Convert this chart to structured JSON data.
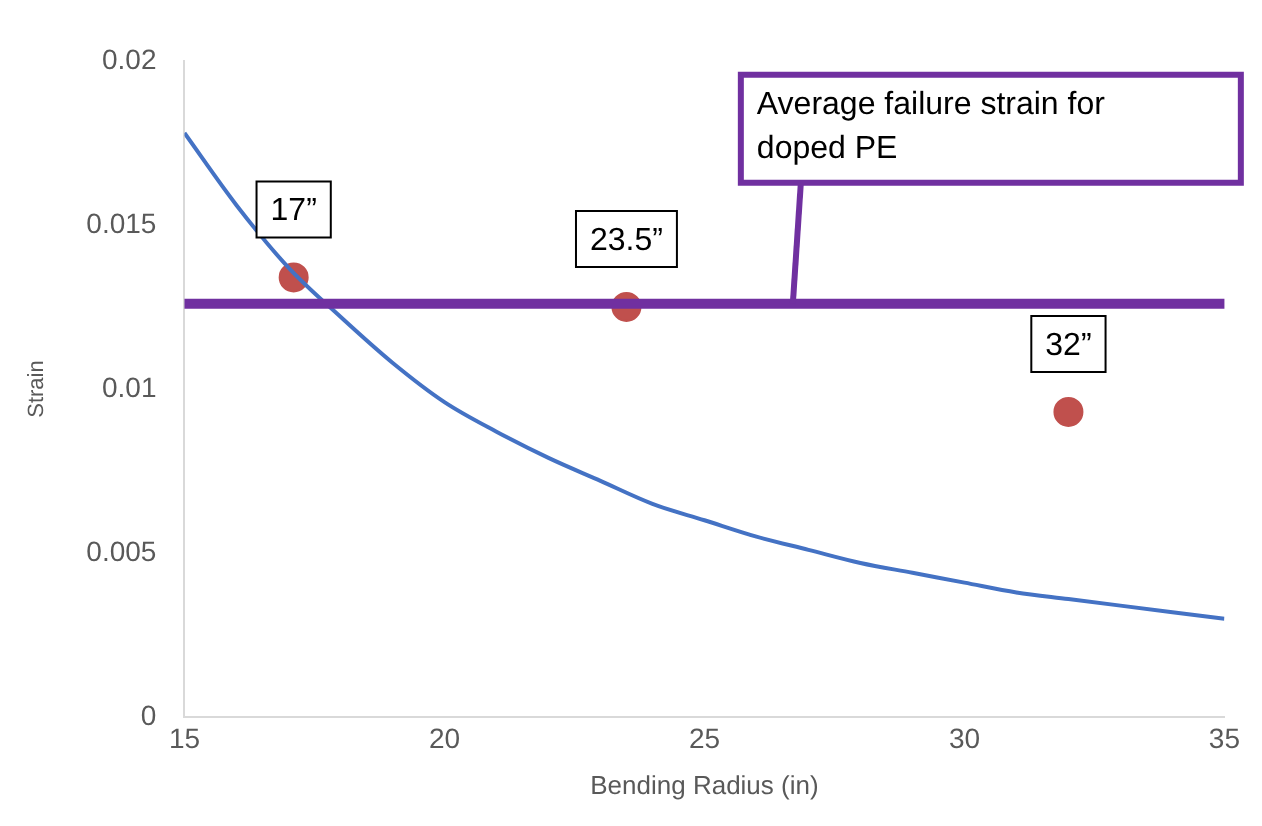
{
  "chart_data": {
    "type": "scatter",
    "xlabel": "Bending Radius (in)",
    "ylabel": "Strain",
    "xlim": [
      15,
      35
    ],
    "xticks": [
      15,
      20,
      25,
      30,
      35
    ],
    "ylim": [
      0,
      0.02
    ],
    "yticks": [
      0,
      0.005,
      0.01,
      0.015,
      0.02
    ],
    "grid": false,
    "legend": false,
    "series": [
      {
        "type": "line",
        "color": "#4472c4",
        "marker": "none",
        "x": [
          15,
          16,
          17,
          18,
          19,
          20,
          21,
          22,
          23,
          24,
          25,
          26,
          27,
          28,
          29,
          30,
          31,
          32,
          33,
          34,
          35
        ],
        "values": [
          0.0178,
          0.0156,
          0.0137,
          0.0122,
          0.0108,
          0.0096,
          0.0087,
          0.0079,
          0.0072,
          0.0065,
          0.006,
          0.0055,
          0.0051,
          0.0047,
          0.0044,
          0.0041,
          0.0038,
          0.0036,
          0.0034,
          0.0032,
          0.003
        ]
      },
      {
        "type": "scatter",
        "color": "#c0504d",
        "marker": "circle",
        "x": [
          17.1,
          23.5,
          32
        ],
        "values": [
          0.0134,
          0.0125,
          0.0093
        ]
      }
    ],
    "ref_lines": [
      {
        "axis": "y",
        "value": 0.0126,
        "label": "Average failure strain for doped PE",
        "color": "#7030a0"
      }
    ],
    "annotations": [
      {
        "text": "17”",
        "x": 17.1,
        "y": 0.0134
      },
      {
        "text": "23.5”",
        "x": 23.5,
        "y": 0.0125
      },
      {
        "text": "32”",
        "x": 32,
        "y": 0.0093
      }
    ]
  }
}
